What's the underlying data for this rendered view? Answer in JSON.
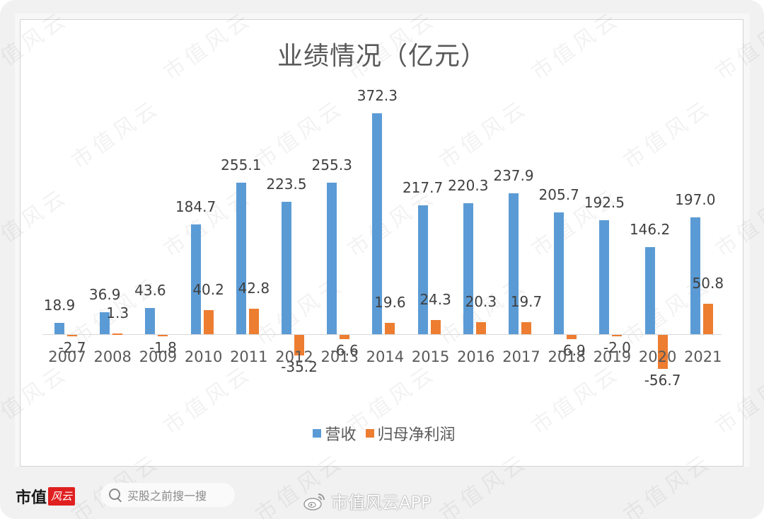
{
  "chart_data": {
    "type": "bar",
    "title": "业绩情况（亿元）",
    "xlabel": "",
    "ylabel": "",
    "categories": [
      "2007",
      "2008",
      "2009",
      "2010",
      "2011",
      "2012",
      "2013",
      "2014",
      "2015",
      "2016",
      "2017",
      "2018",
      "2019",
      "2020",
      "2021"
    ],
    "series": [
      {
        "name": "营收",
        "color": "#5b9bd5",
        "values": [
          18.9,
          36.9,
          43.6,
          184.7,
          255.1,
          223.5,
          255.3,
          372.3,
          217.7,
          220.3,
          237.9,
          205.7,
          192.5,
          146.2,
          197.0
        ]
      },
      {
        "name": "归母净利润",
        "color": "#ed7d31",
        "values": [
          -2.7,
          1.3,
          -1.8,
          40.2,
          42.8,
          -35.2,
          -6.6,
          19.6,
          24.3,
          20.3,
          19.7,
          -6.9,
          -2.0,
          -56.7,
          50.8
        ]
      }
    ],
    "data_labels": {
      "营收": [
        "18.9",
        "36.9",
        "43.6",
        "184.7",
        "255.1",
        "223.5",
        "255.3",
        "372.3",
        "217.7",
        "220.3",
        "237.9",
        "205.7",
        "192.5",
        "146.2",
        "197.0"
      ],
      "归母净利润": [
        "-2.7",
        "1.3",
        "-1.8",
        "40.2",
        "42.8",
        "-35.2",
        "-6.6",
        "19.6",
        "24.3",
        "20.3",
        "19.7",
        "-6.9",
        "-2.0",
        "-56.7",
        "50.8"
      ]
    },
    "ylim": [
      -60,
      380
    ],
    "grid": false,
    "legend_position": "bottom"
  },
  "footer": {
    "brand": "市值",
    "brand_badge": "风云",
    "search_placeholder": "买股之前搜一搜",
    "weibo_handle": "市值风云APP"
  },
  "watermark": "市值风云"
}
